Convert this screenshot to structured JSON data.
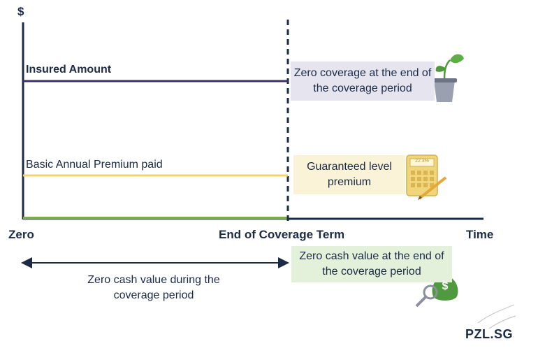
{
  "diagram": {
    "y_axis_label": "$",
    "x_axis_label": "Time",
    "x_start_label": "Zero",
    "x_mid_label": "End of Coverage Term",
    "insured_amount_label": "Insured Amount",
    "premium_label": "Basic Annual Premium paid",
    "coverage_note": "Zero coverage at the end of the coverage period",
    "premium_note": "Guaranteed level premium",
    "cash_value_note": "Zero cash value at the end of the coverage period",
    "cash_period_note": "Zero cash value during the coverage period",
    "calculator_display": "22.3%",
    "money_bag_symbol": "$",
    "logo": "PZL.SG"
  },
  "colors": {
    "axis": "#1b2a45",
    "insured_line": "#3b2f63",
    "premium_line": "#f3d46a",
    "baseline": "#7fa94f",
    "purple_box": "#e6e4ef",
    "yellow_box": "#fbf3d7",
    "green_box": "#e3f0da",
    "plant_green": "#4f9a3c",
    "money_green": "#4f9a3c"
  },
  "icons": [
    "plant-pot-icon",
    "calculator-icon",
    "money-bag-icon",
    "magnifier-icon"
  ]
}
